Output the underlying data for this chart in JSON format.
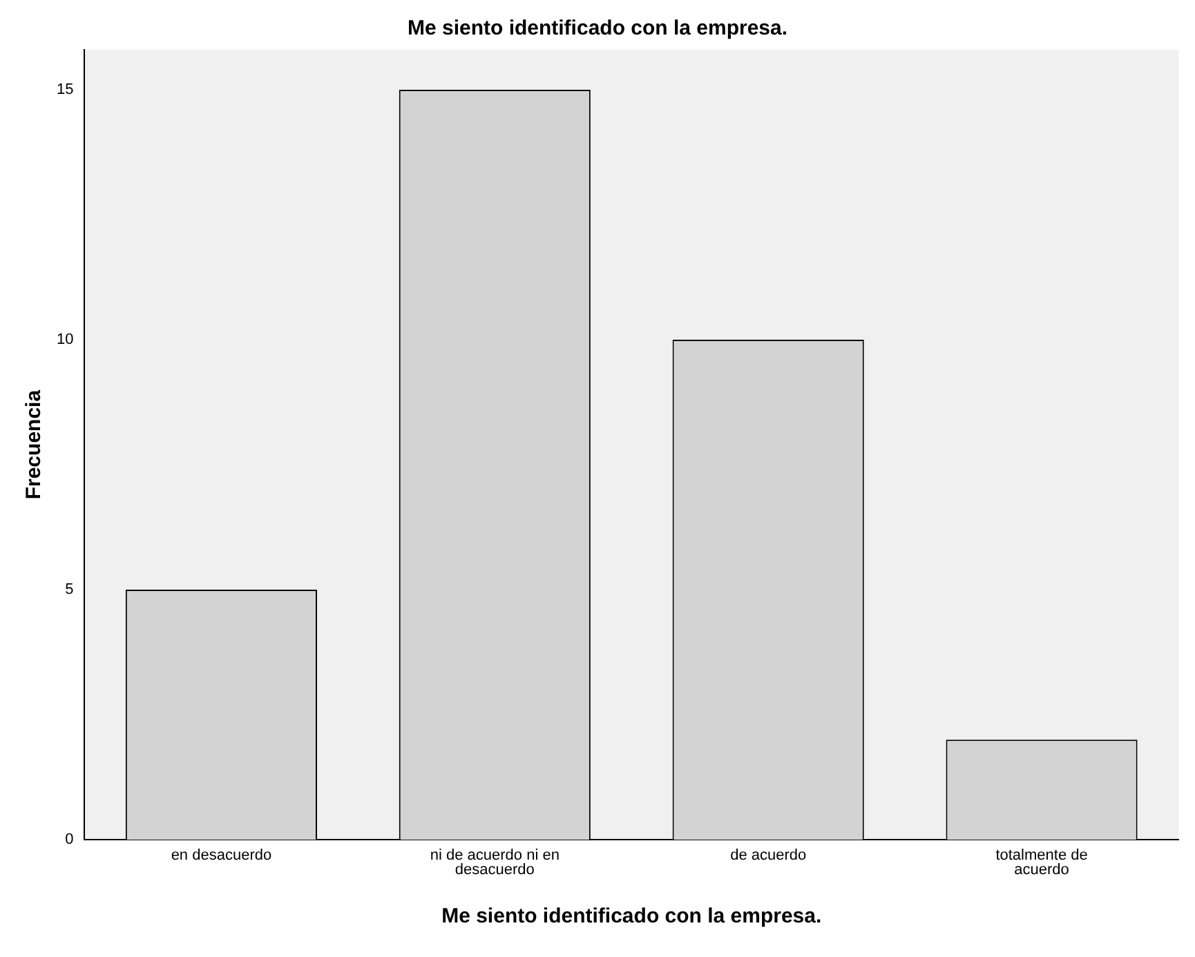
{
  "chart_data": {
    "type": "bar",
    "title": "Me siento identificado con la empresa.",
    "xlabel": "Me siento identificado con la empresa.",
    "ylabel": "Frecuencia",
    "categories": [
      "en desacuerdo",
      "ni de acuerdo ni en desacuerdo",
      "de acuerdo",
      "totalmente de acuerdo"
    ],
    "values": [
      5,
      15,
      10,
      2
    ],
    "color": "#d3d3d3",
    "ylim": [
      0,
      15.8
    ],
    "yticks": [
      0,
      5,
      10,
      15
    ],
    "grid": false,
    "legend": false
  }
}
